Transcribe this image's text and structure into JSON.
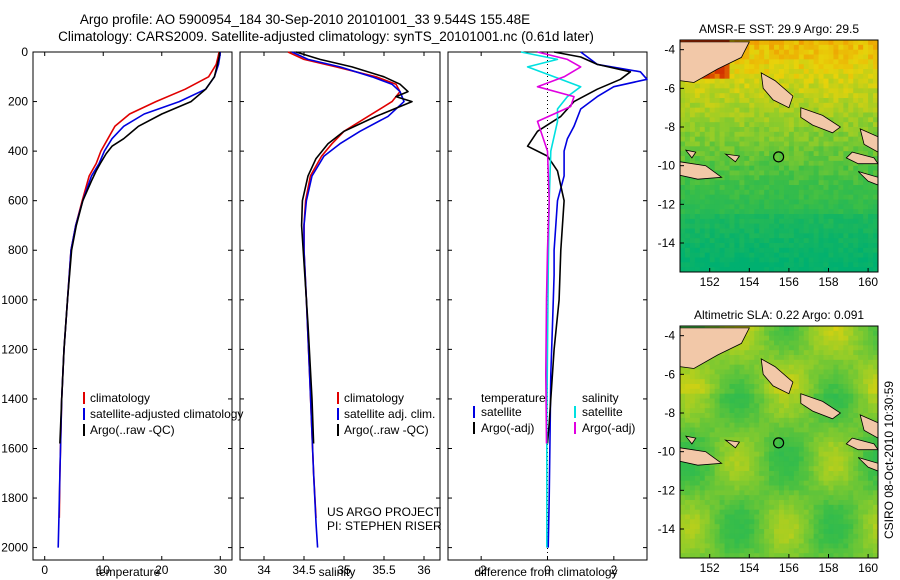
{
  "header": {
    "title_line1": "Argo profile: AO 5900954_184 30-Sep-2010 20101001_33 9.544S 155.48E",
    "title_line2": "Climatology: CARS2009. Satellite-adjusted climatology: synTS_20101001.nc (0.61d later)",
    "side_stamp": "CSIRO 08-Oct-2010 10:30:59"
  },
  "colors": {
    "climatology": "#e00000",
    "satellite": "#0000e0",
    "argo": "#000000",
    "sal_satellite": "#00e0e0",
    "sal_argo": "#e000e0",
    "land": "#f2c8a8",
    "sea_low": "#1fb070",
    "sea_high": "#d83000"
  },
  "chart_data": [
    {
      "type": "line",
      "name": "temperature",
      "xlabel": "temperature",
      "ylabel": "",
      "xlim": [
        -2,
        32
      ],
      "ylim": [
        2050,
        0
      ],
      "xticks": [
        0,
        10,
        20,
        30
      ],
      "yticks": [
        0,
        200,
        400,
        600,
        800,
        1000,
        1200,
        1400,
        1600,
        1800,
        2000
      ],
      "legend": {
        "location": "lower-right",
        "entries": [
          "climatology",
          "satellite-adjusted climatology",
          "Argo(..raw -QC)"
        ]
      },
      "series": [
        {
          "name": "climatology",
          "color_key": "climatology",
          "x": [
            29.8,
            29.6,
            29.3,
            28.0,
            24.0,
            19.0,
            14.5,
            12.0,
            10.8,
            9.6,
            8.8,
            7.6,
            6.4,
            5.3,
            4.5,
            3.9,
            3.3,
            2.9,
            2.6,
            2.5
          ],
          "y": [
            0,
            20,
            50,
            100,
            150,
            200,
            250,
            300,
            350,
            400,
            450,
            500,
            600,
            700,
            800,
            1000,
            1200,
            1400,
            1700,
            1880
          ]
        },
        {
          "name": "satellite-adjusted climatology",
          "color_key": "satellite",
          "x": [
            30.0,
            29.9,
            29.7,
            29.0,
            27.5,
            23.0,
            17.0,
            13.5,
            11.5,
            10.2,
            9.3,
            8.0,
            6.5,
            5.3,
            4.5,
            3.9,
            3.3,
            2.9,
            2.6,
            2.4,
            2.3
          ],
          "y": [
            0,
            20,
            50,
            100,
            150,
            200,
            250,
            300,
            350,
            400,
            450,
            500,
            600,
            700,
            800,
            1000,
            1200,
            1400,
            1700,
            1900,
            2000
          ]
        },
        {
          "name": "Argo(..raw -QC)",
          "color_key": "argo",
          "x": [
            29.9,
            29.8,
            29.5,
            29.0,
            27.5,
            25.0,
            20.0,
            16.0,
            13.5,
            11.5,
            10.5,
            9.5,
            8.8,
            8.0,
            6.5,
            5.4,
            4.6,
            3.9,
            3.3,
            2.9,
            2.6
          ],
          "y": [
            0,
            20,
            50,
            100,
            150,
            200,
            250,
            300,
            350,
            380,
            410,
            450,
            480,
            520,
            600,
            700,
            800,
            1000,
            1200,
            1400,
            1580
          ]
        }
      ]
    },
    {
      "type": "line",
      "name": "salinity",
      "xlabel": "salinity",
      "ylabel": "",
      "xlim": [
        33.7,
        36.2
      ],
      "ylim": [
        2050,
        0
      ],
      "xticks": [
        34,
        34.5,
        35,
        35.5,
        36
      ],
      "yticks": [
        0,
        200,
        400,
        600,
        800,
        1000,
        1200,
        1400,
        1600,
        1800,
        2000
      ],
      "legend": {
        "location": "lower-right",
        "entries": [
          "climatology",
          "satellite adj. clim.",
          "Argo(..raw -QC)"
        ]
      },
      "annotation_lines": [
        "US ARGO PROJECT",
        "PI: STEPHEN RISER"
      ],
      "series": [
        {
          "name": "climatology",
          "color_key": "climatology",
          "x": [
            34.3,
            34.5,
            34.9,
            35.4,
            35.65,
            35.7,
            35.6,
            35.3,
            35.0,
            34.85,
            34.72,
            34.58,
            34.52,
            34.5,
            34.5,
            34.53,
            34.57,
            34.62,
            34.65
          ],
          "y": [
            0,
            30,
            60,
            100,
            130,
            160,
            200,
            260,
            320,
            370,
            420,
            500,
            600,
            700,
            800,
            1000,
            1300,
            1700,
            1880
          ]
        },
        {
          "name": "satellite adj. clim.",
          "color_key": "satellite",
          "x": [
            34.35,
            34.55,
            34.95,
            35.35,
            35.6,
            35.7,
            35.75,
            35.55,
            35.2,
            34.95,
            34.75,
            34.6,
            34.53,
            34.5,
            34.5,
            34.53,
            34.57,
            34.62,
            34.65,
            34.67
          ],
          "y": [
            0,
            30,
            60,
            100,
            130,
            160,
            200,
            260,
            320,
            370,
            420,
            500,
            600,
            700,
            800,
            1000,
            1300,
            1700,
            1900,
            2000
          ]
        },
        {
          "name": "Argo(..raw -QC)",
          "color_key": "argo",
          "x": [
            34.4,
            34.7,
            35.1,
            35.5,
            35.7,
            35.8,
            35.65,
            35.85,
            35.4,
            35.0,
            34.8,
            34.65,
            34.55,
            34.48,
            34.47,
            34.5,
            34.55,
            34.6,
            34.62
          ],
          "y": [
            0,
            30,
            60,
            100,
            130,
            160,
            180,
            200,
            260,
            320,
            370,
            430,
            500,
            600,
            700,
            850,
            1100,
            1400,
            1580
          ]
        }
      ]
    },
    {
      "type": "line",
      "name": "difference",
      "xlabel": "difference from climatology",
      "ylabel": "",
      "xlim": [
        -3,
        3
      ],
      "ylim": [
        2050,
        0
      ],
      "xticks": [
        -2,
        0,
        2
      ],
      "yticks": [
        0,
        200,
        400,
        600,
        800,
        1000,
        1200,
        1400,
        1600,
        1800,
        2000
      ],
      "legend_temperature": {
        "heading": "temperature",
        "entries": [
          "satellite",
          "Argo(-adj)"
        ]
      },
      "legend_salinity": {
        "heading": "salinity",
        "entries": [
          "satellite",
          "Argo(-adj)"
        ]
      },
      "series": [
        {
          "name": "temperature satellite",
          "color_key": "satellite",
          "x": [
            1.0,
            1.5,
            2.8,
            3.0,
            2.0,
            1.5,
            1.0,
            0.8,
            0.6,
            0.5,
            0.5,
            0.3,
            0.25,
            0.2,
            0.2,
            0.15,
            0.1,
            0.08,
            0.05,
            0.02
          ],
          "y": [
            0,
            50,
            80,
            110,
            140,
            180,
            230,
            300,
            350,
            400,
            500,
            600,
            700,
            800,
            900,
            1100,
            1300,
            1500,
            1800,
            2000
          ]
        },
        {
          "name": "temperature Argo(-adj)",
          "color_key": "argo",
          "x": [
            0.2,
            1.0,
            1.5,
            2.5,
            2.2,
            1.5,
            0.8,
            0.4,
            -0.3,
            -0.6,
            0.0,
            0.3,
            0.5,
            0.4,
            0.35,
            0.2,
            0.1,
            0.05,
            0.0
          ],
          "y": [
            0,
            20,
            50,
            80,
            110,
            150,
            200,
            260,
            320,
            380,
            420,
            480,
            600,
            800,
            1000,
            1200,
            1400,
            1500,
            1580
          ]
        },
        {
          "name": "salinity satellite",
          "color_key": "sal_satellite",
          "x": [
            -0.8,
            0.3,
            -0.6,
            0.2,
            1.0,
            0.6,
            0.3,
            0.3,
            0.1,
            0.05,
            0.02,
            0.0,
            -0.02,
            -0.02,
            -0.02
          ],
          "y": [
            0,
            30,
            60,
            100,
            140,
            180,
            230,
            280,
            400,
            600,
            900,
            1200,
            1500,
            1800,
            2000
          ]
        },
        {
          "name": "salinity Argo(-adj)",
          "color_key": "sal_argo",
          "x": [
            -0.3,
            0.6,
            1.0,
            0.5,
            -0.3,
            0.8,
            0.7,
            -0.3,
            0.0,
            0.05,
            0.0,
            -0.03,
            -0.05,
            -0.03
          ],
          "y": [
            0,
            30,
            60,
            100,
            140,
            180,
            220,
            280,
            400,
            600,
            800,
            1000,
            1300,
            1580
          ]
        }
      ]
    },
    {
      "type": "heatmap",
      "name": "sst_map",
      "title": "AMSR-E SST: 29.9 Argo: 29.5",
      "xlim": [
        150.5,
        160.5
      ],
      "ylim": [
        -15.5,
        -3.5
      ],
      "xticks": [
        152,
        154,
        156,
        158,
        160
      ],
      "yticks": [
        -4,
        -6,
        -8,
        -10,
        -12,
        -14
      ],
      "profile_location": {
        "lon": 155.48,
        "lat": -9.544
      }
    },
    {
      "type": "heatmap",
      "name": "sla_map",
      "title": "Altimetric SLA: 0.22 Argo: 0.091",
      "xlim": [
        150.5,
        160.5
      ],
      "ylim": [
        -15.5,
        -3.5
      ],
      "xticks": [
        152,
        154,
        156,
        158,
        160
      ],
      "yticks": [
        -4,
        -6,
        -8,
        -10,
        -12,
        -14
      ],
      "profile_location": {
        "lon": 155.48,
        "lat": -9.544
      }
    }
  ]
}
